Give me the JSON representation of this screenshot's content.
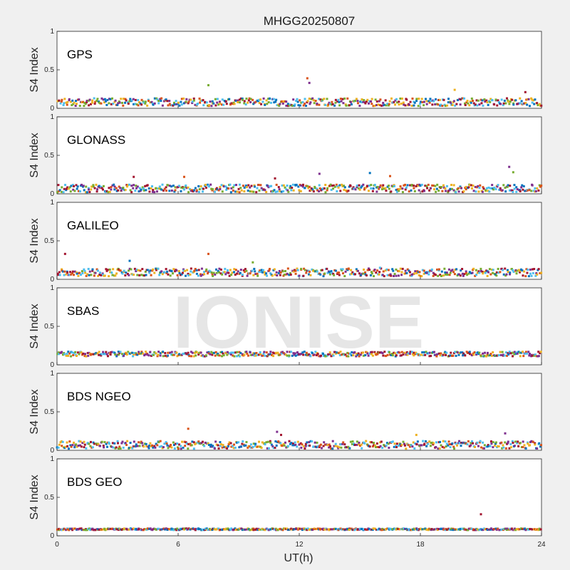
{
  "figure": {
    "title": "MHGG20250807",
    "watermark": "IONISE"
  },
  "chart_data": {
    "type": "scatter",
    "title": "MHGG20250807",
    "xlabel": "UT(h)",
    "ylabel": "S4 Index",
    "xlim": [
      0,
      24
    ],
    "ylim": [
      0,
      1
    ],
    "xticks": [
      "0",
      "6",
      "12",
      "18",
      "24"
    ],
    "yticks": [
      "0",
      "0.5",
      "1"
    ],
    "colors": [
      "#0072BD",
      "#D95319",
      "#EDB120",
      "#7E2F8E",
      "#77AC30",
      "#4DBEEE",
      "#A2142F"
    ],
    "panels": [
      {
        "title": "GPS",
        "baseline_s4": 0.08,
        "spread_s4": 0.05,
        "spikes": [
          {
            "t": 7.5,
            "s4": 0.3
          },
          {
            "t": 12.4,
            "s4": 0.39
          },
          {
            "t": 12.5,
            "s4": 0.33
          },
          {
            "t": 19.7,
            "s4": 0.24
          },
          {
            "t": 23.2,
            "s4": 0.21
          }
        ]
      },
      {
        "title": "GLONASS",
        "baseline_s4": 0.07,
        "spread_s4": 0.05,
        "spikes": [
          {
            "t": 3.8,
            "s4": 0.22
          },
          {
            "t": 6.3,
            "s4": 0.22
          },
          {
            "t": 10.8,
            "s4": 0.2
          },
          {
            "t": 13.0,
            "s4": 0.26
          },
          {
            "t": 15.5,
            "s4": 0.27
          },
          {
            "t": 16.5,
            "s4": 0.23
          },
          {
            "t": 22.4,
            "s4": 0.35
          },
          {
            "t": 22.6,
            "s4": 0.28
          }
        ]
      },
      {
        "title": "GALILEO",
        "baseline_s4": 0.09,
        "spread_s4": 0.05,
        "spikes": [
          {
            "t": 0.4,
            "s4": 0.33
          },
          {
            "t": 3.6,
            "s4": 0.24
          },
          {
            "t": 7.5,
            "s4": 0.33
          },
          {
            "t": 9.7,
            "s4": 0.22
          },
          {
            "t": 16.0,
            "s4": 0.15
          }
        ]
      },
      {
        "title": "SBAS",
        "baseline_s4": 0.14,
        "spread_s4": 0.03,
        "spikes": []
      },
      {
        "title": "BDS NGEO",
        "baseline_s4": 0.07,
        "spread_s4": 0.05,
        "spikes": [
          {
            "t": 6.5,
            "s4": 0.28
          },
          {
            "t": 10.9,
            "s4": 0.24
          },
          {
            "t": 11.1,
            "s4": 0.2
          },
          {
            "t": 22.2,
            "s4": 0.22
          },
          {
            "t": 17.8,
            "s4": 0.2
          }
        ]
      },
      {
        "title": "BDS GEO",
        "baseline_s4": 0.085,
        "spread_s4": 0.01,
        "spikes": [
          {
            "t": 21.0,
            "s4": 0.28
          }
        ]
      }
    ]
  }
}
